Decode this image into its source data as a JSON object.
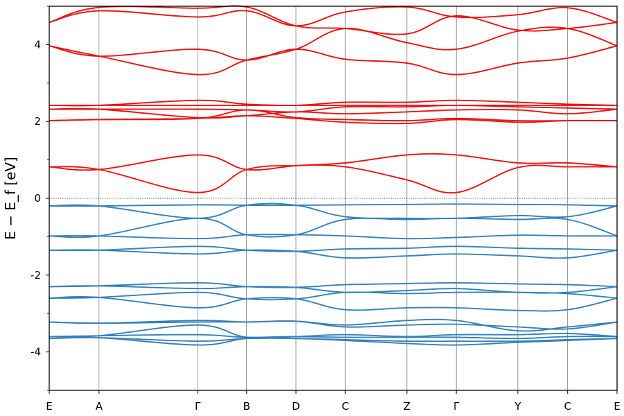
{
  "chart_data": {
    "type": "line",
    "title": "",
    "ylabel": "E − E_f [eV]",
    "xlabel": "",
    "ylim": [
      -5,
      5
    ],
    "yticks": [
      -4,
      -2,
      0,
      2,
      4
    ],
    "ytick_labels": [
      "-4",
      "-2",
      "0",
      "2",
      "4"
    ],
    "x_ticks": [
      {
        "label": "E",
        "x": 0.0
      },
      {
        "label": "A",
        "x": 0.0877
      },
      {
        "label": "Γ",
        "x": 0.2615
      },
      {
        "label": "B",
        "x": 0.3477
      },
      {
        "label": "D",
        "x": 0.4346
      },
      {
        "label": "C",
        "x": 0.5215
      },
      {
        "label": "Z",
        "x": 0.6299
      },
      {
        "label": "Γ",
        "x": 0.7169
      },
      {
        "label": "Y",
        "x": 0.8253
      },
      {
        "label": "C",
        "x": 0.913
      },
      {
        "label": "E",
        "x": 1.0
      }
    ],
    "fermi_level": 0,
    "colors": {
      "conduction": "#ee1111",
      "valence": "#3480be"
    },
    "x": [
      0.0,
      0.0877,
      0.2615,
      0.3477,
      0.4346,
      0.5215,
      0.6299,
      0.7169,
      0.8253,
      0.913,
      1.0
    ],
    "series": [
      {
        "band": "conduction",
        "values": [
          4.58,
          4.88,
          4.72,
          4.88,
          4.49,
          4.85,
          4.98,
          4.72,
          4.78,
          4.96,
          4.58
        ]
      },
      {
        "band": "conduction",
        "values": [
          4.58,
          4.97,
          4.95,
          4.98,
          4.49,
          4.42,
          4.28,
          4.75,
          4.38,
          4.42,
          4.58
        ]
      },
      {
        "band": "conduction",
        "values": [
          3.97,
          3.7,
          3.88,
          3.6,
          3.88,
          3.62,
          3.52,
          3.22,
          3.52,
          3.65,
          3.97
        ]
      },
      {
        "band": "conduction",
        "values": [
          3.97,
          3.7,
          3.22,
          3.6,
          3.88,
          4.42,
          4.05,
          3.88,
          4.35,
          4.42,
          3.97
        ]
      },
      {
        "band": "conduction",
        "values": [
          2.42,
          2.42,
          2.55,
          2.45,
          2.42,
          2.5,
          2.5,
          2.55,
          2.5,
          2.45,
          2.42
        ]
      },
      {
        "band": "conduction",
        "values": [
          2.42,
          2.42,
          2.42,
          2.42,
          2.42,
          2.42,
          2.42,
          2.42,
          2.42,
          2.42,
          2.42
        ]
      },
      {
        "band": "conduction",
        "values": [
          2.32,
          2.32,
          2.32,
          2.3,
          2.25,
          2.38,
          2.38,
          2.42,
          2.38,
          2.35,
          2.32
        ]
      },
      {
        "band": "conduction",
        "values": [
          2.32,
          2.32,
          2.1,
          2.15,
          2.25,
          2.2,
          2.25,
          2.3,
          2.3,
          2.2,
          2.32
        ]
      },
      {
        "band": "conduction",
        "values": [
          2.02,
          2.05,
          2.08,
          2.3,
          2.1,
          2.05,
          2.02,
          2.08,
          2.02,
          2.02,
          2.02
        ]
      },
      {
        "band": "conduction",
        "values": [
          2.02,
          2.05,
          2.08,
          2.15,
          2.08,
          1.98,
          1.95,
          2.05,
          1.98,
          2.02,
          2.02
        ]
      },
      {
        "band": "conduction",
        "values": [
          0.82,
          0.75,
          1.13,
          0.75,
          0.85,
          0.92,
          1.13,
          1.13,
          0.92,
          0.92,
          0.82
        ]
      },
      {
        "band": "conduction",
        "values": [
          0.82,
          0.75,
          0.15,
          0.75,
          0.85,
          0.82,
          0.48,
          0.15,
          0.8,
          0.82,
          0.82
        ]
      },
      {
        "band": "valence",
        "values": [
          -0.2,
          -0.2,
          -0.17,
          -0.18,
          -0.18,
          -0.17,
          -0.16,
          -0.15,
          -0.16,
          -0.17,
          -0.2
        ]
      },
      {
        "band": "valence",
        "values": [
          -0.2,
          -0.2,
          -0.52,
          -0.18,
          -0.18,
          -0.48,
          -0.52,
          -0.52,
          -0.45,
          -0.48,
          -0.2
        ]
      },
      {
        "band": "valence",
        "values": [
          -0.98,
          -0.98,
          -0.52,
          -0.95,
          -0.95,
          -0.55,
          -0.55,
          -0.52,
          -0.55,
          -0.55,
          -0.98
        ]
      },
      {
        "band": "valence",
        "values": [
          -0.98,
          -0.98,
          -1.05,
          -0.95,
          -0.95,
          -0.98,
          -1.05,
          -1.02,
          -0.96,
          -0.98,
          -0.98
        ]
      },
      {
        "band": "valence",
        "values": [
          -1.35,
          -1.35,
          -1.25,
          -1.35,
          -1.38,
          -1.32,
          -1.3,
          -1.25,
          -1.3,
          -1.32,
          -1.35
        ]
      },
      {
        "band": "valence",
        "values": [
          -1.35,
          -1.35,
          -1.45,
          -1.35,
          -1.38,
          -1.55,
          -1.5,
          -1.45,
          -1.5,
          -1.55,
          -1.35
        ]
      },
      {
        "band": "valence",
        "values": [
          -2.3,
          -2.28,
          -2.2,
          -2.3,
          -2.32,
          -2.25,
          -2.22,
          -2.2,
          -2.23,
          -2.25,
          -2.3
        ]
      },
      {
        "band": "valence",
        "values": [
          -2.3,
          -2.28,
          -2.35,
          -2.3,
          -2.32,
          -2.45,
          -2.4,
          -2.35,
          -2.45,
          -2.45,
          -2.3
        ]
      },
      {
        "band": "valence",
        "values": [
          -2.6,
          -2.58,
          -2.45,
          -2.62,
          -2.62,
          -2.45,
          -2.48,
          -2.45,
          -2.45,
          -2.48,
          -2.6
        ]
      },
      {
        "band": "valence",
        "values": [
          -2.6,
          -2.58,
          -2.85,
          -2.62,
          -2.62,
          -2.9,
          -2.85,
          -2.85,
          -2.92,
          -2.9,
          -2.6
        ]
      },
      {
        "band": "valence",
        "values": [
          -3.22,
          -3.25,
          -3.18,
          -3.22,
          -3.2,
          -3.35,
          -3.3,
          -3.28,
          -3.35,
          -3.4,
          -3.22
        ]
      },
      {
        "band": "valence",
        "values": [
          -3.22,
          -3.25,
          -3.22,
          -3.22,
          -3.2,
          -3.3,
          -3.18,
          -3.18,
          -3.45,
          -3.35,
          -3.22
        ]
      },
      {
        "band": "valence",
        "values": [
          -3.6,
          -3.58,
          -3.3,
          -3.62,
          -3.6,
          -3.55,
          -3.6,
          -3.55,
          -3.55,
          -3.52,
          -3.6
        ]
      },
      {
        "band": "valence",
        "values": [
          -3.6,
          -3.58,
          -3.55,
          -3.62,
          -3.6,
          -3.62,
          -3.62,
          -3.62,
          -3.65,
          -3.6,
          -3.6
        ]
      },
      {
        "band": "valence",
        "values": [
          -3.65,
          -3.63,
          -3.72,
          -3.65,
          -3.65,
          -3.68,
          -3.72,
          -3.72,
          -3.72,
          -3.68,
          -3.65
        ]
      },
      {
        "band": "valence",
        "values": [
          -3.65,
          -3.63,
          -3.82,
          -3.65,
          -3.65,
          -3.7,
          -3.78,
          -3.82,
          -3.75,
          -3.7,
          -3.65
        ]
      }
    ]
  }
}
